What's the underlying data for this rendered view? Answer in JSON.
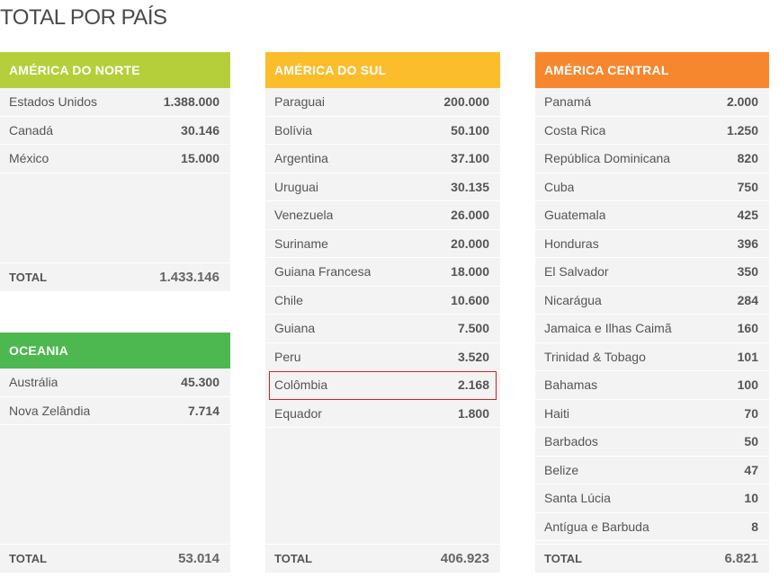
{
  "title": "TOTAL POR PAÍS",
  "colors": {
    "norte": "#b5cf3a",
    "oceania": "#4cb84f",
    "sul": "#fbbd2c",
    "central": "#f7872e",
    "highlight": "#cc2222"
  },
  "norte": {
    "header": "AMÉRICA DO NORTE",
    "rows": [
      {
        "name": "Estados Unidos",
        "value": "1.388.000"
      },
      {
        "name": "Canadá",
        "value": "30.146"
      },
      {
        "name": "México",
        "value": "15.000"
      }
    ],
    "total_label": "TOTAL",
    "total_value": "1.433.146"
  },
  "oceania": {
    "header": "OCEANIA",
    "rows": [
      {
        "name": "Austrália",
        "value": "45.300"
      },
      {
        "name": "Nova Zelândia",
        "value": "7.714"
      }
    ],
    "total_label": "TOTAL",
    "total_value": "53.014"
  },
  "sul": {
    "header": "AMÉRICA DO SUL",
    "rows": [
      {
        "name": "Paraguai",
        "value": "200.000"
      },
      {
        "name": "Bolívia",
        "value": "50.100"
      },
      {
        "name": "Argentina",
        "value": "37.100"
      },
      {
        "name": "Uruguai",
        "value": "30.135"
      },
      {
        "name": "Venezuela",
        "value": "26.000"
      },
      {
        "name": "Suriname",
        "value": "20.000"
      },
      {
        "name": "Guiana Francesa",
        "value": "18.000"
      },
      {
        "name": "Chile",
        "value": "10.600"
      },
      {
        "name": "Guiana",
        "value": "7.500"
      },
      {
        "name": "Peru",
        "value": "3.520"
      },
      {
        "name": "Colômbia",
        "value": "2.168"
      },
      {
        "name": "Equador",
        "value": "1.800"
      }
    ],
    "highlight_index": 10,
    "total_label": "TOTAL",
    "total_value": "406.923"
  },
  "central": {
    "header": "AMÉRICA CENTRAL",
    "rows": [
      {
        "name": "Panamá",
        "value": "2.000"
      },
      {
        "name": "Costa Rica",
        "value": "1.250"
      },
      {
        "name": "República Dominicana",
        "value": "820"
      },
      {
        "name": "Cuba",
        "value": "750"
      },
      {
        "name": "Guatemala",
        "value": "425"
      },
      {
        "name": "Honduras",
        "value": "396"
      },
      {
        "name": "El Salvador",
        "value": "350"
      },
      {
        "name": "Nicarágua",
        "value": "284"
      },
      {
        "name": "Jamaica e Ilhas Caimã",
        "value": "160"
      },
      {
        "name": "Trinidad & Tobago",
        "value": "101"
      },
      {
        "name": "Bahamas",
        "value": "100"
      },
      {
        "name": "Haiti",
        "value": "70"
      },
      {
        "name": "Barbados",
        "value": "50"
      },
      {
        "name": "Belize",
        "value": "47"
      },
      {
        "name": "Santa Lúcia",
        "value": "10"
      },
      {
        "name": "Antígua e Barbuda",
        "value": "8"
      }
    ],
    "total_label": "TOTAL",
    "total_value": "6.821"
  }
}
